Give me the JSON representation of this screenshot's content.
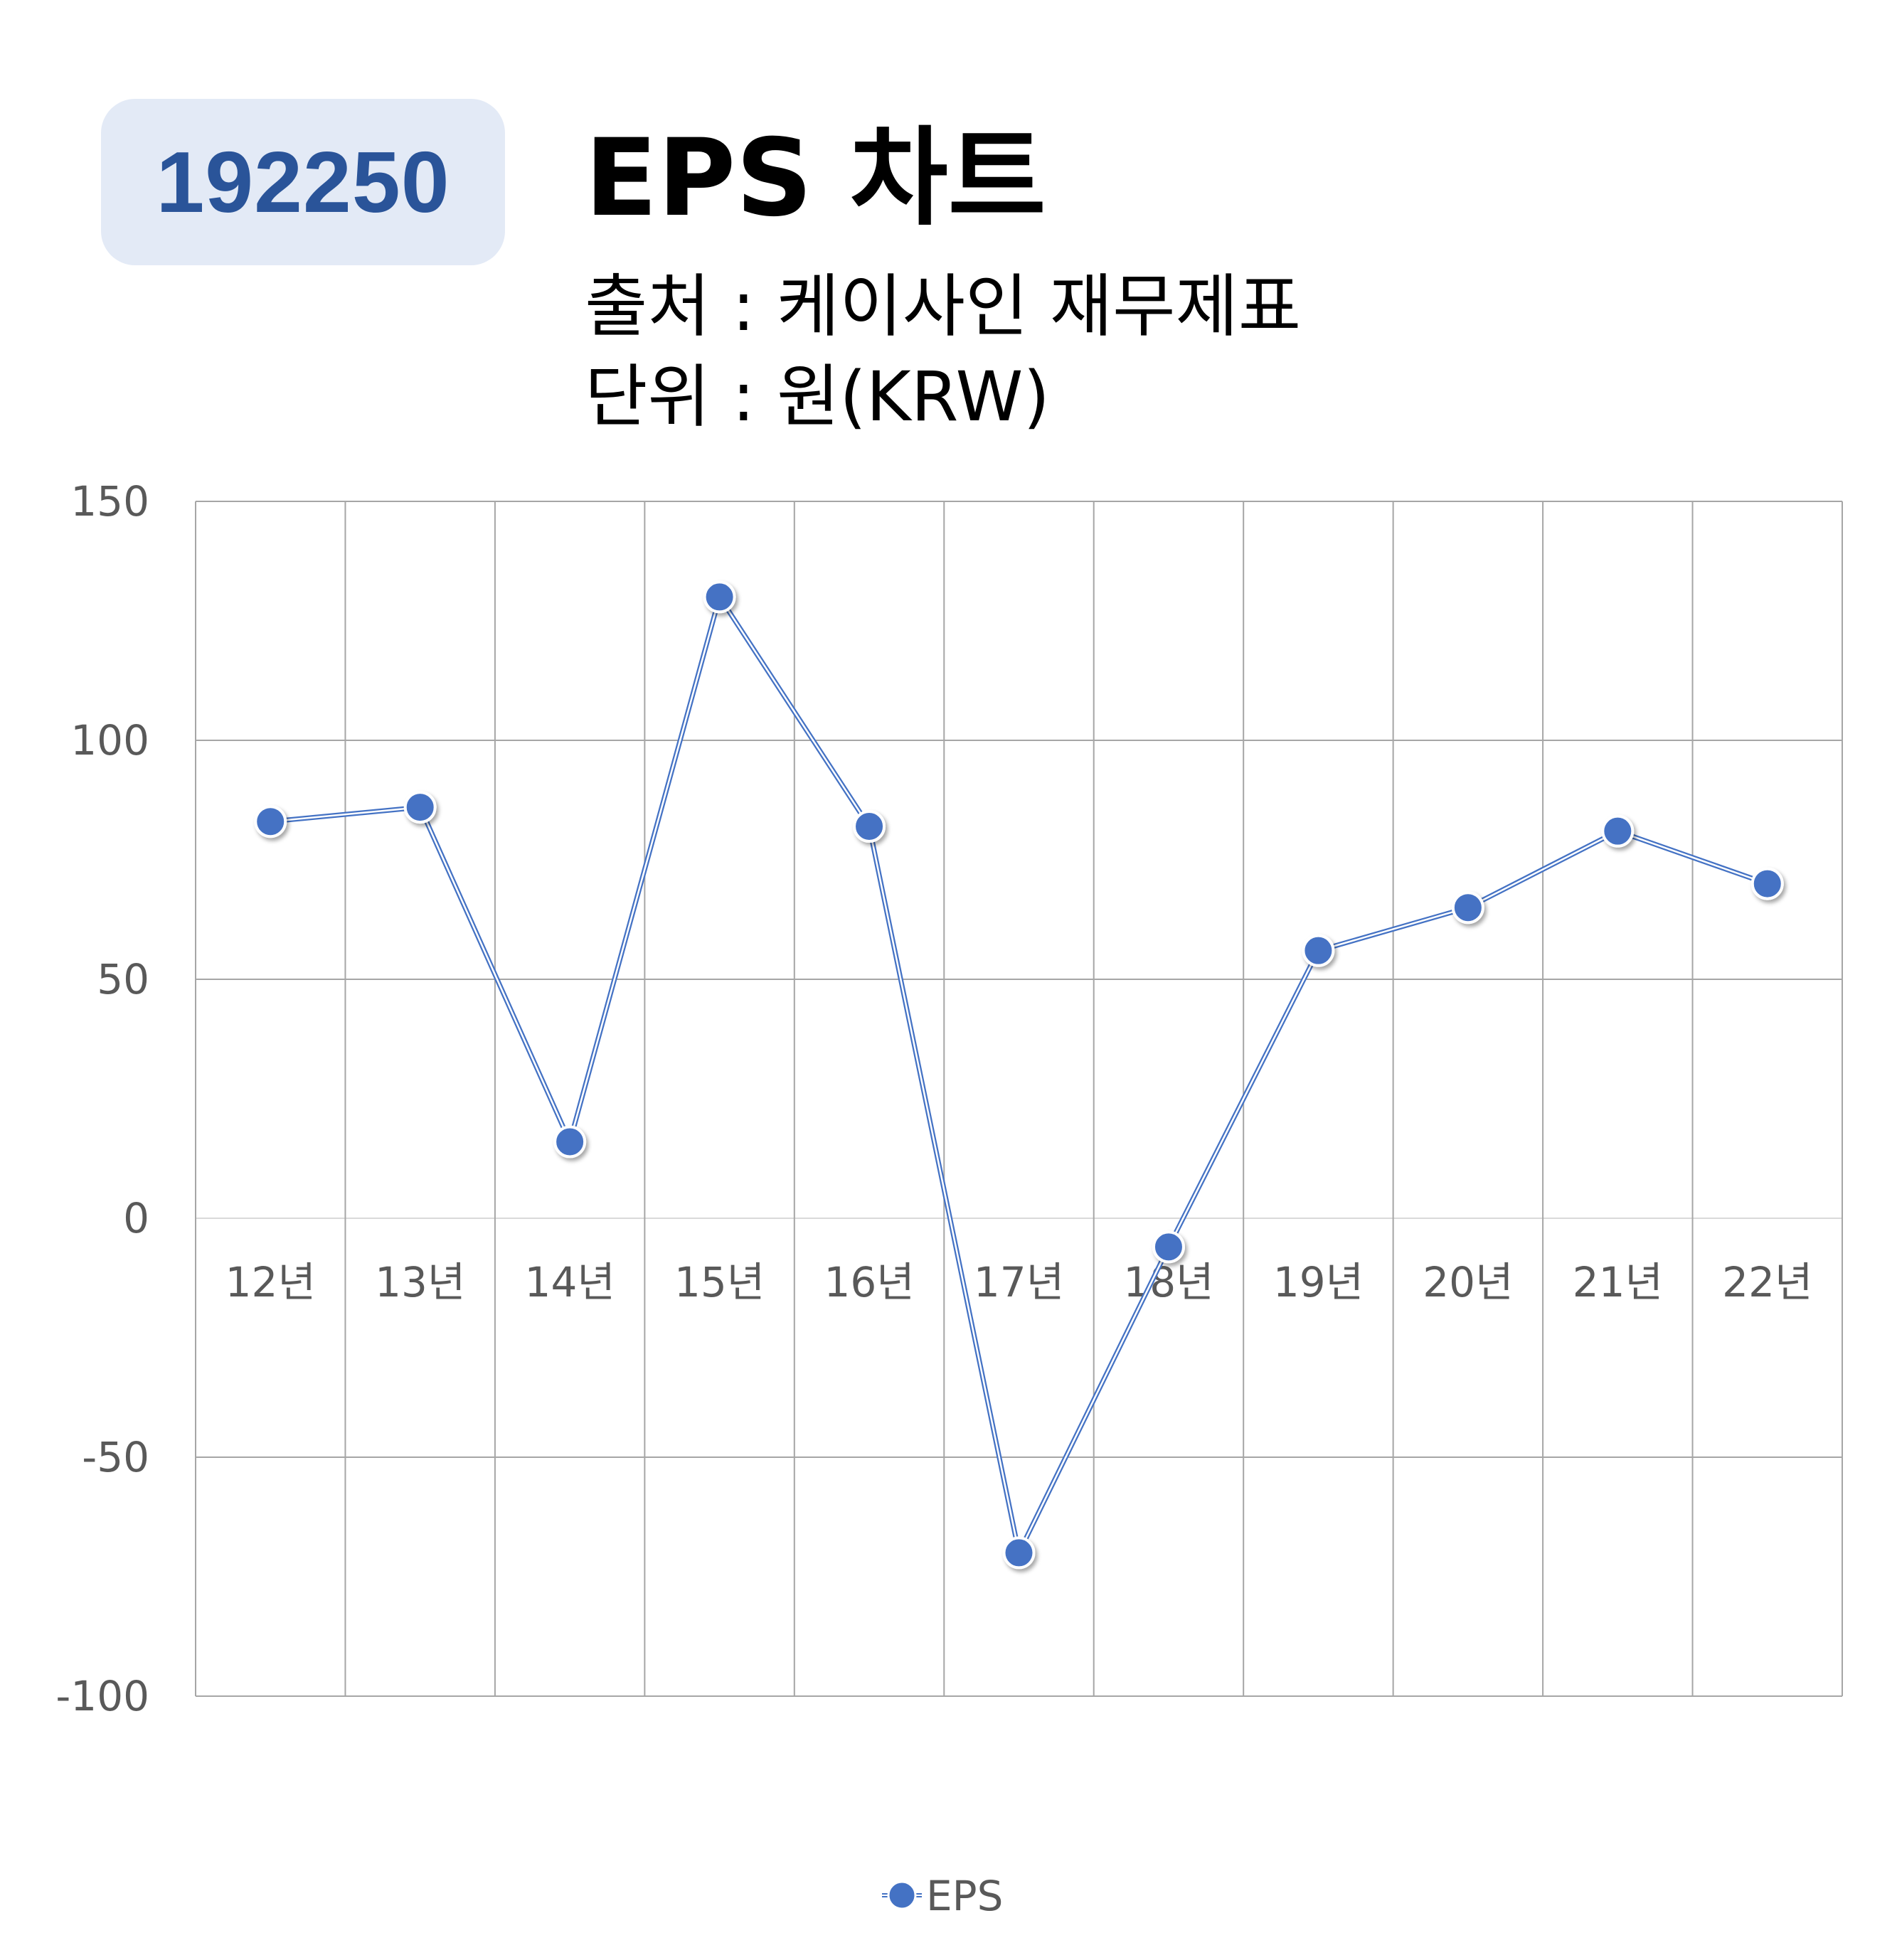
{
  "header": {
    "code": "192250",
    "title": "EPS 차트",
    "source": "출처 : 케이사인 재무제표",
    "unit": "단위 : 원(KRW)"
  },
  "colors": {
    "series": "#4472c4",
    "badge_bg": "#e3eaf6",
    "badge_text": "#2a5499",
    "grid": "#a6a6a6",
    "tick_text": "#595959"
  },
  "chart_data": {
    "type": "line",
    "categories": [
      "12년",
      "13년",
      "14년",
      "15년",
      "16년",
      "17년",
      "18년",
      "19년",
      "20년",
      "21년",
      "22년"
    ],
    "series": [
      {
        "name": "EPS",
        "values": [
          83,
          86,
          16,
          130,
          82,
          -70,
          -6,
          56,
          65,
          81,
          70
        ]
      }
    ],
    "yticks": [
      150,
      100,
      50,
      0,
      -50,
      -100
    ],
    "ylim": [
      -100,
      150
    ],
    "grid": true,
    "legend": "bottom"
  }
}
